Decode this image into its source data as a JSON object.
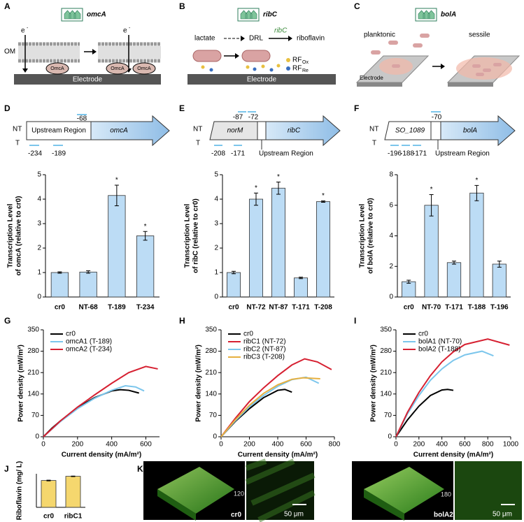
{
  "panel_labels": [
    "A",
    "B",
    "C",
    "D",
    "E",
    "F",
    "G",
    "H",
    "I",
    "J",
    "K"
  ],
  "panels": {
    "A": {
      "gene": "omcA",
      "electron": "e",
      "electron_charge": "-",
      "membrane": "OM",
      "protein": "OmcA",
      "electrode": "Electrode"
    },
    "B": {
      "gene": "ribC",
      "substrate": "lactate",
      "intermediate": "DRL",
      "enzyme": "ribC",
      "product": "riboflavin",
      "rf_ox": "RF",
      "rf_ox_sub": "Ox",
      "rf_re": "RF",
      "rf_re_sub": "Re",
      "electrode": "Electrode"
    },
    "C": {
      "gene": "bolA",
      "state_1": "planktonic",
      "state_2": "sessile",
      "electrode": "Electrode"
    },
    "D": {
      "strand_nt": "NT",
      "strand_t": "T",
      "region": "Upstream Region",
      "gene": "omcA",
      "sites_nt": [
        "-68"
      ],
      "sites_t": [
        "-234",
        "-189"
      ]
    },
    "E": {
      "strand_nt": "NT",
      "strand_t": "T",
      "upstream_gene": "norM",
      "gene": "ribC",
      "region": "Upstream Region",
      "sites_nt": [
        "-87",
        "-72"
      ],
      "sites_t": [
        "-208",
        "-171"
      ]
    },
    "F": {
      "strand_nt": "NT",
      "strand_t": "T",
      "upstream_gene": "SO_1089",
      "gene": "bolA",
      "region": "Upstream Region",
      "sites_nt": [
        "-70"
      ],
      "sites_t": [
        "-196",
        "-188",
        "-171"
      ]
    },
    "K": {
      "depth_1": "120",
      "strain_1": "cr0",
      "scale_1": "50 μm",
      "depth_2": "180",
      "strain_2": "bolA2",
      "scale_2": "50 μm"
    }
  },
  "chart_data": [
    {
      "type": "bar",
      "y_label": [
        "Transcription Level",
        "of omcA (relative to cr0)"
      ],
      "categories": [
        "cr0",
        "NT-68",
        "T-189",
        "T-234"
      ],
      "values": [
        1,
        1.02,
        4.15,
        2.5
      ],
      "errors": [
        0.03,
        0.05,
        0.42,
        0.18
      ],
      "significance": [
        null,
        null,
        "*",
        "*"
      ],
      "color": "#bcdcf5",
      "ylim": [
        0,
        5
      ],
      "yticks": [
        0,
        1,
        2,
        3,
        4,
        5
      ]
    },
    {
      "type": "bar",
      "y_label": [
        "Transcription Level",
        "of ribC (relative to cr0)"
      ],
      "categories": [
        "cr0",
        "NT-72",
        "NT-87",
        "T-171",
        "T-208"
      ],
      "values": [
        1,
        4.0,
        4.45,
        0.78,
        3.9
      ],
      "errors": [
        0.05,
        0.25,
        0.25,
        0.03,
        0.03
      ],
      "significance": [
        null,
        "*",
        "*",
        null,
        "*"
      ],
      "color": "#bcdcf5",
      "ylim": [
        0,
        5
      ],
      "yticks": [
        0,
        1,
        2,
        3,
        4,
        5
      ]
    },
    {
      "type": "bar",
      "y_label": [
        "Transcription Level",
        "of bolA (relative to cr0)"
      ],
      "categories": [
        "cr0",
        "NT-70",
        "T-171",
        "T-188",
        "T-196"
      ],
      "values": [
        1,
        6.0,
        2.25,
        6.8,
        2.15
      ],
      "errors": [
        0.1,
        0.7,
        0.1,
        0.5,
        0.2
      ],
      "significance": [
        null,
        "*",
        null,
        "*",
        null
      ],
      "color": "#bcdcf5",
      "ylim": [
        0,
        8
      ],
      "yticks": [
        0,
        2,
        4,
        6,
        8
      ]
    },
    {
      "type": "line",
      "x_label": "Current density (mA/m²)",
      "y_label": "Power density (mW/m²)",
      "xlim": [
        0,
        680
      ],
      "xticks": [
        0,
        200,
        400,
        600
      ],
      "ylim": [
        0,
        350
      ],
      "yticks": [
        0,
        70,
        140,
        210,
        280,
        350
      ],
      "series": [
        {
          "name": "cr0",
          "color": "#000000",
          "x": [
            0,
            50,
            100,
            200,
            300,
            400,
            450,
            500,
            560
          ],
          "values": [
            0,
            28,
            52,
            95,
            128,
            150,
            154,
            152,
            143
          ]
        },
        {
          "name": "omcA1 (T-189)",
          "color": "#7cc6ec",
          "x": [
            0,
            100,
            200,
            300,
            400,
            480,
            540,
            590
          ],
          "values": [
            0,
            50,
            92,
            126,
            152,
            167,
            163,
            150
          ]
        },
        {
          "name": "omcA2 (T-234)",
          "color": "#d62031",
          "x": [
            0,
            100,
            200,
            300,
            400,
            500,
            600,
            670
          ],
          "values": [
            0,
            52,
            97,
            137,
            175,
            210,
            230,
            222
          ]
        }
      ]
    },
    {
      "type": "line",
      "x_label": "Current density (mA/m²)",
      "y_label": "Power density (mW/m²)",
      "xlim": [
        0,
        800
      ],
      "xticks": [
        0,
        200,
        400,
        600,
        800
      ],
      "ylim": [
        0,
        350
      ],
      "yticks": [
        0,
        70,
        140,
        210,
        280,
        350
      ],
      "series": [
        {
          "name": "cr0",
          "color": "#000000",
          "x": [
            0,
            100,
            200,
            300,
            400,
            450,
            500
          ],
          "values": [
            0,
            50,
            92,
            128,
            152,
            155,
            146
          ]
        },
        {
          "name": "ribC1 (NT-72)",
          "color": "#d62031",
          "x": [
            0,
            100,
            200,
            300,
            400,
            500,
            590,
            680,
            780
          ],
          "values": [
            0,
            60,
            115,
            160,
            200,
            235,
            255,
            245,
            220
          ]
        },
        {
          "name": "ribC2 (NT-87)",
          "color": "#7cc6ec",
          "x": [
            0,
            100,
            200,
            300,
            400,
            500,
            600,
            690
          ],
          "values": [
            0,
            52,
            98,
            135,
            165,
            187,
            195,
            175
          ]
        },
        {
          "name": "ribC3 (T-208)",
          "color": "#e6b040",
          "x": [
            0,
            100,
            200,
            300,
            400,
            500,
            580,
            700
          ],
          "values": [
            0,
            55,
            103,
            142,
            170,
            188,
            193,
            190
          ]
        }
      ]
    },
    {
      "type": "line",
      "x_label": "Current density (mA/m²)",
      "y_label": "Power density (mW/m²)",
      "xlim": [
        0,
        1000
      ],
      "xticks": [
        0,
        200,
        400,
        600,
        800,
        1000
      ],
      "ylim": [
        0,
        350
      ],
      "yticks": [
        0,
        70,
        140,
        210,
        280,
        350
      ],
      "series": [
        {
          "name": "cr0",
          "color": "#000000",
          "x": [
            0,
            100,
            200,
            300,
            400,
            450,
            500
          ],
          "values": [
            0,
            55,
            100,
            135,
            153,
            155,
            152
          ]
        },
        {
          "name": "bolA1 (NT-70)",
          "color": "#7cc6ec",
          "x": [
            0,
            100,
            200,
            300,
            400,
            500,
            600,
            750,
            850
          ],
          "values": [
            0,
            75,
            135,
            185,
            222,
            250,
            268,
            280,
            265
          ]
        },
        {
          "name": "bolA2 (T-188)",
          "color": "#d62031",
          "x": [
            0,
            100,
            200,
            300,
            400,
            500,
            600,
            800,
            990
          ],
          "values": [
            0,
            80,
            145,
            200,
            245,
            278,
            302,
            320,
            300
          ]
        }
      ]
    },
    {
      "type": "bar",
      "y_label": [
        "Riboflavin  (mg/ L)"
      ],
      "categories": [
        "cr0",
        "ribC1"
      ],
      "values": [
        3.2,
        3.7
      ],
      "errors": [
        0.04,
        0.03
      ],
      "color": "#f5d76e",
      "ylim": [
        0,
        4
      ]
    }
  ]
}
